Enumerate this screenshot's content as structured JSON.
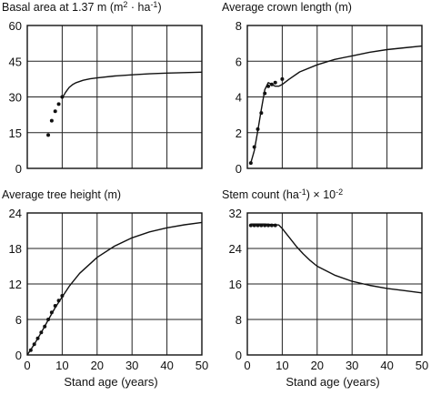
{
  "chart_data": [
    {
      "type": "line",
      "title_main": "Basal area at 1.37 m (m",
      "title_sup1": "2",
      "title_mid": " · ha",
      "title_sup2": "-1",
      "title_end": ")",
      "xlabel": "",
      "ylabel": "",
      "xlim": [
        0,
        50
      ],
      "ylim": [
        0,
        60
      ],
      "xticks": [
        10,
        20,
        30,
        40,
        50
      ],
      "yticks": [
        0,
        15,
        30,
        45,
        60
      ],
      "show_xtick_labels": false,
      "grid": true,
      "series": [
        {
          "style": "curve",
          "x": [
            10,
            11,
            12,
            13,
            14,
            16,
            18,
            20,
            25,
            30,
            35,
            40,
            45,
            50
          ],
          "y": [
            29.5,
            32,
            34,
            35.2,
            36,
            37,
            37.6,
            38,
            38.8,
            39.3,
            39.7,
            40,
            40.2,
            40.4
          ]
        },
        {
          "style": "observed",
          "x": [
            6,
            7,
            8,
            9,
            10
          ],
          "y": [
            14,
            20,
            24,
            27,
            30
          ]
        }
      ]
    },
    {
      "type": "line",
      "title_main": "Average crown length (m)",
      "xlabel": "",
      "ylabel": "",
      "xlim": [
        0,
        50
      ],
      "ylim": [
        0,
        8
      ],
      "xticks": [
        10,
        20,
        30,
        40,
        50
      ],
      "yticks": [
        0,
        2,
        4,
        6,
        8
      ],
      "show_xtick_labels": false,
      "grid": true,
      "series": [
        {
          "style": "curve",
          "x": [
            1,
            2,
            3,
            4,
            5,
            6,
            7,
            8,
            9,
            10,
            12,
            15,
            20,
            25,
            30,
            35,
            40,
            45,
            50
          ],
          "y": [
            0.3,
            1.0,
            2.1,
            3.3,
            4.4,
            4.8,
            4.7,
            4.6,
            4.6,
            4.7,
            5.0,
            5.4,
            5.8,
            6.1,
            6.3,
            6.5,
            6.65,
            6.75,
            6.85
          ]
        },
        {
          "style": "observed",
          "x": [
            1,
            2,
            3,
            4,
            5,
            6,
            7,
            8,
            10
          ],
          "y": [
            0.3,
            1.2,
            2.2,
            3.1,
            4.2,
            4.6,
            4.7,
            4.8,
            5.0
          ]
        }
      ]
    },
    {
      "type": "line",
      "title_main": "Average tree height (m)",
      "xlabel": "Stand age (years)",
      "ylabel": "",
      "xlim": [
        0,
        50
      ],
      "ylim": [
        0,
        24
      ],
      "xticks": [
        0,
        10,
        20,
        30,
        40,
        50
      ],
      "yticks": [
        0,
        6,
        12,
        18,
        24
      ],
      "show_xtick_labels": true,
      "grid": true,
      "series": [
        {
          "style": "curve",
          "x": [
            0,
            2,
            4,
            6,
            8,
            10,
            12,
            15,
            20,
            25,
            30,
            35,
            40,
            45,
            50
          ],
          "y": [
            0,
            1.8,
            3.8,
            5.9,
            8.0,
            9.8,
            11.6,
            13.8,
            16.5,
            18.4,
            19.8,
            20.8,
            21.5,
            22.0,
            22.4
          ]
        },
        {
          "style": "observed",
          "x": [
            1,
            2,
            3,
            4,
            5,
            6,
            7,
            8,
            9,
            10
          ],
          "y": [
            0.8,
            1.8,
            2.8,
            3.8,
            4.8,
            6.0,
            7.2,
            8.3,
            9.2,
            10.0
          ]
        }
      ]
    },
    {
      "type": "line",
      "title_main": "Stem count (ha",
      "title_sup1": "-1",
      "title_mid": ") × 10",
      "title_sup2": "-2",
      "title_end": "",
      "xlabel": "Stand age (years)",
      "ylabel": "",
      "xlim": [
        0,
        50
      ],
      "ylim": [
        0,
        32
      ],
      "xticks": [
        0,
        10,
        20,
        30,
        40,
        50
      ],
      "yticks": [
        0,
        8,
        16,
        24,
        32
      ],
      "show_xtick_labels": true,
      "grid": true,
      "series": [
        {
          "style": "curve",
          "x": [
            1,
            5,
            9,
            10,
            12,
            14,
            16,
            18,
            20,
            25,
            30,
            35,
            40,
            45,
            50
          ],
          "y": [
            29.5,
            29.5,
            29.3,
            28.5,
            26.5,
            24.5,
            22.8,
            21.3,
            20.0,
            18.0,
            16.6,
            15.7,
            15.0,
            14.5,
            14.0
          ]
        },
        {
          "style": "observed",
          "x": [
            1,
            2,
            3,
            4,
            5,
            6,
            7,
            8
          ],
          "y": [
            29.2,
            29.2,
            29.2,
            29.2,
            29.2,
            29.2,
            29.2,
            29.2
          ]
        }
      ]
    }
  ]
}
